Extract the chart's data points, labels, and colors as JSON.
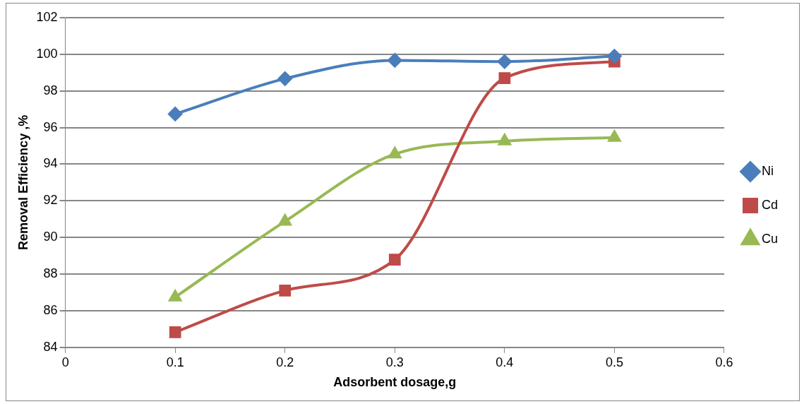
{
  "chart_data": {
    "type": "line",
    "xlabel": "Adsorbent dosage,g",
    "ylabel": "Removal Efficiency ,%",
    "x": [
      0.1,
      0.2,
      0.3,
      0.4,
      0.5
    ],
    "series": [
      {
        "name": "Ni",
        "color": "#4a7ebb",
        "marker": "diamond",
        "values": [
          96.74,
          98.67,
          99.67,
          99.6,
          99.9
        ]
      },
      {
        "name": "Cd",
        "color": "#be4b48",
        "marker": "square",
        "values": [
          84.83,
          87.1,
          88.79,
          98.7,
          99.6
        ]
      },
      {
        "name": "Cu",
        "color": "#98b954",
        "marker": "triangle",
        "values": [
          86.74,
          90.88,
          94.55,
          95.26,
          95.45
        ]
      }
    ],
    "xlim": [
      0,
      0.6
    ],
    "xticks": [
      0,
      0.1,
      0.2,
      0.3,
      0.4,
      0.5,
      0.6
    ],
    "ylim": [
      84,
      102
    ],
    "yticks": [
      84,
      86,
      88,
      90,
      92,
      94,
      96,
      98,
      100,
      102
    ],
    "grid": "y",
    "legend": "right",
    "line_style": "solid"
  }
}
